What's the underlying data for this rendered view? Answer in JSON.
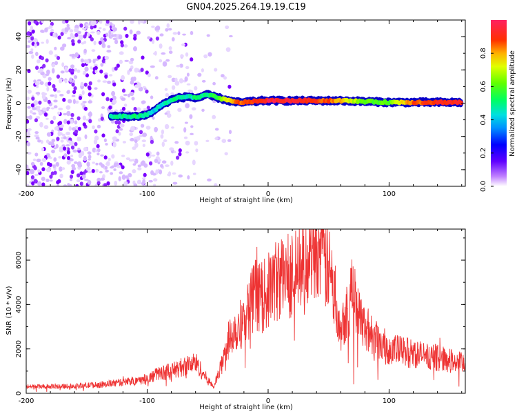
{
  "title": "GN04.2025.264.19.19.C19",
  "chart_data": [
    {
      "type": "heatmap",
      "name": "spectrogram",
      "xlabel": "Height of straight line (km)",
      "ylabel": "Frequency (Hz)",
      "xlim": [
        -200,
        163
      ],
      "ylim": [
        -50,
        50
      ],
      "xticks": [
        "-200",
        "-100",
        "0",
        "100"
      ],
      "yticks": [
        "-40",
        "-20",
        "0",
        "20",
        "40"
      ],
      "colorbar": {
        "label": "Normalized spectral amplitude",
        "range": [
          0,
          1
        ],
        "ticks": [
          "0.0",
          "0.2",
          "0.4",
          "0.6",
          "0.8"
        ]
      },
      "signal_track": {
        "x": [
          -130,
          -120,
          -110,
          -100,
          -95,
          -90,
          -85,
          -80,
          -75,
          -70,
          -65,
          -60,
          -55,
          -50,
          -45,
          -40,
          -35,
          -30,
          -25,
          -20,
          -15,
          -10,
          -5,
          0,
          20,
          40,
          60,
          80,
          100,
          120,
          140,
          160
        ],
        "freq": [
          -8,
          -8,
          -8,
          -7,
          -5,
          -2,
          0,
          2,
          3,
          3.5,
          4,
          3,
          4,
          5,
          4,
          3,
          2,
          1,
          0.5,
          0.5,
          1,
          1,
          1.5,
          1.5,
          1.5,
          1.5,
          1.5,
          1,
          0.5,
          0.5,
          0.5,
          0.5
        ],
        "amplitude": [
          0.45,
          0.5,
          0.5,
          0.45,
          0.4,
          0.45,
          0.45,
          0.5,
          0.5,
          0.5,
          0.45,
          0.5,
          0.5,
          0.5,
          0.55,
          0.6,
          0.7,
          0.8,
          0.85,
          0.85,
          0.9,
          0.9,
          0.9,
          0.95,
          0.95,
          0.9,
          0.8,
          0.6,
          0.6,
          0.85,
          0.9,
          0.9
        ]
      }
    },
    {
      "type": "line",
      "name": "snr",
      "xlabel": "Height of straight line (km)",
      "ylabel": "SNR (10 * v/v)",
      "xlim": [
        -200,
        163
      ],
      "ylim": [
        0,
        7400
      ],
      "xticks": [
        "-200",
        "-100",
        "0",
        "100"
      ],
      "yticks": [
        "0",
        "2000",
        "4000",
        "6000"
      ],
      "color": "#ee3333",
      "series": [
        {
          "name": "SNR envelope",
          "x": [
            -200,
            -180,
            -160,
            -140,
            -120,
            -100,
            -90,
            -80,
            -70,
            -60,
            -50,
            -45,
            -40,
            -35,
            -30,
            -25,
            -20,
            -15,
            -10,
            -5,
            0,
            5,
            10,
            15,
            20,
            25,
            30,
            35,
            40,
            45,
            50,
            55,
            60,
            65,
            70,
            75,
            80,
            90,
            100,
            110,
            120,
            130,
            140,
            150,
            163
          ],
          "values": [
            300,
            300,
            330,
            380,
            500,
            650,
            900,
            1000,
            1200,
            1400,
            600,
            300,
            1000,
            2000,
            2800,
            3000,
            3300,
            4000,
            4500,
            4300,
            4600,
            5000,
            5200,
            5300,
            5400,
            5500,
            5600,
            6700,
            6900,
            6000,
            5600,
            4500,
            3000,
            3800,
            4500,
            4000,
            3000,
            2400,
            2000,
            1900,
            1800,
            1700,
            1600,
            1500,
            1300
          ]
        }
      ]
    }
  ]
}
